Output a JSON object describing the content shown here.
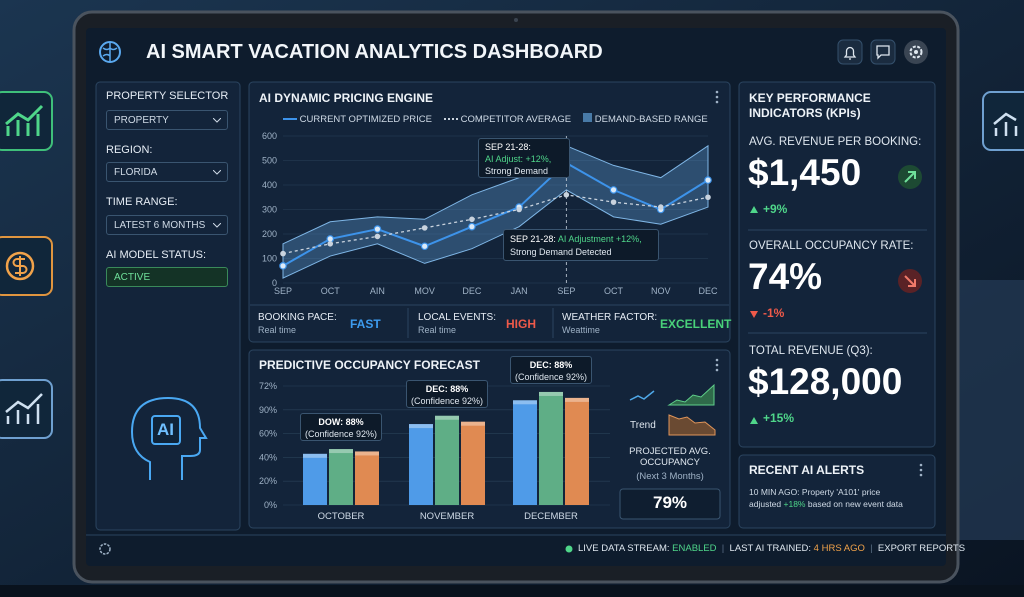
{
  "header": {
    "title": "AI SMART VACATION ANALYTICS DASHBOARD"
  },
  "sidebar": {
    "property_label": "PROPERTY SELECTOR",
    "property_value": "PROPERTY",
    "region_label": "REGION:",
    "region_value": "FLORIDA",
    "time_label": "TIME RANGE:",
    "time_value": "LATEST 6 MONTHS",
    "model_label": "AI MODEL STATUS:",
    "model_value": "ACTIVE",
    "ai_badge": "AI"
  },
  "pricing": {
    "title": "AI DYNAMIC PRICING ENGINE",
    "chart_data": {
      "type": "line",
      "categories": [
        "SEP",
        "OCT",
        "AIN",
        "MOV",
        "DEC",
        "JAN",
        "SEP",
        "OCT",
        "NOV",
        "DEC"
      ],
      "ylim": [
        0,
        600
      ],
      "yticks": [
        0,
        100,
        200,
        300,
        400,
        500,
        600
      ],
      "grid": true,
      "series": [
        {
          "name": "CURRENT OPTIMIZED PRICE",
          "color": "#3d93ea",
          "values": [
            70,
            180,
            220,
            150,
            230,
            310,
            490,
            380,
            300,
            420
          ]
        },
        {
          "name": "COMPETITOR AVERAGE",
          "color": "#c9d3de",
          "values": [
            120,
            160,
            190,
            225,
            260,
            300,
            360,
            330,
            310,
            350
          ]
        }
      ],
      "band": {
        "name": "DEMAND-BASED RANGE",
        "color": "#5f9fd6",
        "lower": [
          20,
          110,
          160,
          80,
          140,
          230,
          380,
          270,
          240,
          310
        ],
        "upper": [
          160,
          250,
          270,
          260,
          360,
          430,
          560,
          480,
          430,
          560
        ]
      },
      "annotations": [
        {
          "title": "SEP 21-28:",
          "text": "AI Adjust: +12%,",
          "text2": "Strong Demand"
        },
        {
          "title": "SEP 21-28:",
          "text": "AI Adjustment +12%,",
          "text2": "Strong Demand Detected"
        }
      ]
    },
    "metrics": [
      {
        "label": "BOOKING PACE:",
        "sub": "Real time",
        "value": "FAST",
        "color": "#3d9cf0"
      },
      {
        "label": "LOCAL EVENTS:",
        "sub": "Real time",
        "value": "HIGH",
        "color": "#ef5a4a"
      },
      {
        "label": "WEATHER FACTOR:",
        "sub": "Weattime",
        "value": "EXCELLENT",
        "color": "#49d27a"
      }
    ]
  },
  "forecast": {
    "title": "PREDICTIVE OCCUPANCY FORECAST",
    "chart_data": {
      "type": "bar",
      "categories": [
        "OCTOBER",
        "NOVEMBER",
        "DECEMBER"
      ],
      "axis_labels": [
        "0%",
        "20%",
        "40%",
        "60%",
        "90%",
        "72%"
      ],
      "ylim": [
        0,
        100
      ],
      "series": [
        {
          "color": "#4f9be8",
          "values": [
            43,
            68,
            88
          ]
        },
        {
          "color": "#5fae86",
          "values": [
            47,
            75,
            95
          ]
        },
        {
          "color": "#e08a52",
          "values": [
            45,
            70,
            90
          ]
        }
      ],
      "annotations": [
        {
          "line1": "DOW: 88%",
          "line2": "(Confidence 92%)"
        },
        {
          "line1": "DEC: 88%",
          "line2": "(Confidence 92%)"
        },
        {
          "line1": "DEC: 88%",
          "line2": "(Confidence 92%)"
        }
      ]
    },
    "trend_label": "Trend",
    "projected_label": "PROJECTED AVG. OCCUPANCY",
    "projected_sub": "(Next 3 Months)",
    "projected_value": "79%"
  },
  "kpis": {
    "title": "KEY PERFORMANCE INDICATORS (KPIs)",
    "items": [
      {
        "label": "AVG. REVENUE PER BOOKING:",
        "value": "$1,450",
        "change": "+9%"
      },
      {
        "label": "OVERALL OCCUPANCY RATE:",
        "value": "74%",
        "change": "-1%"
      },
      {
        "label": "TOTAL REVENUE (Q3):",
        "value": "$128,000",
        "change": "+15%"
      }
    ]
  },
  "alerts": {
    "title": "RECENT AI ALERTS",
    "line1": "10 MIN AGO: Property 'A101' price",
    "line2a": "adjusted",
    "highlight": "+18%",
    "line2b": "based on new event data"
  },
  "footer": {
    "stream_label": "LIVE DATA STREAM:",
    "stream_value": "ENABLED",
    "trained_label": "LAST AI TRAINED:",
    "trained_value": "4 HRS AGO",
    "export": "EXPORT REPORTS"
  }
}
